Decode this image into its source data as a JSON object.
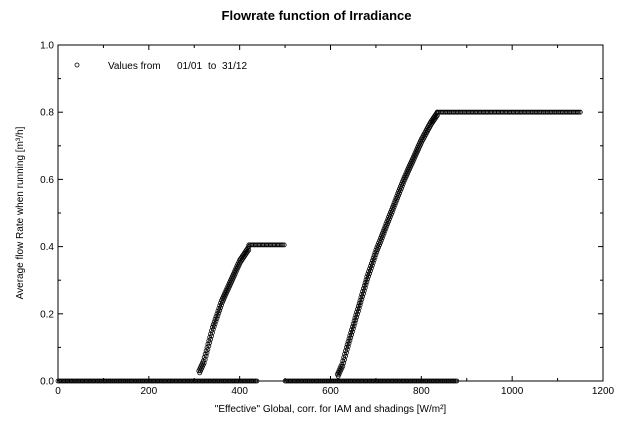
{
  "chart_data": {
    "type": "scatter",
    "title": "Flowrate function of Irradiance",
    "xlabel": "\"Effective\" Global, corr. for IAM and shadings [W/m²]",
    "ylabel": "Average flow Rate when running [m³/h]",
    "xlim": [
      0,
      1200
    ],
    "ylim": [
      0,
      1.0
    ],
    "xticks": [
      "0",
      "200",
      "400",
      "600",
      "800",
      "1000",
      "1200"
    ],
    "yticks": [
      "0.0",
      "0.2",
      "0.4",
      "0.6",
      "0.8",
      "1.0"
    ],
    "grid": false,
    "legend": {
      "placement": "top-left",
      "label": "Values from",
      "from": "01/01",
      "to_word": "to",
      "to": "31/12"
    },
    "series": [
      {
        "marker": "circle-open",
        "segments": [
          {
            "kind": "flat",
            "x_from": 0,
            "x_to": 440,
            "y": 0.0
          },
          {
            "kind": "flat",
            "x_from": 500,
            "x_to": 880,
            "y": 0.0
          },
          {
            "kind": "curve",
            "points": [
              [
                310,
                0.03
              ],
              [
                320,
                0.06
              ],
              [
                330,
                0.11
              ],
              [
                340,
                0.16
              ],
              [
                350,
                0.2
              ],
              [
                360,
                0.24
              ],
              [
                370,
                0.27
              ],
              [
                380,
                0.3
              ],
              [
                390,
                0.33
              ],
              [
                400,
                0.36
              ],
              [
                410,
                0.38
              ],
              [
                420,
                0.4
              ]
            ]
          },
          {
            "kind": "flat",
            "x_from": 420,
            "x_to": 500,
            "y": 0.405
          },
          {
            "kind": "curve",
            "points": [
              [
                615,
                0.02
              ],
              [
                625,
                0.05
              ],
              [
                635,
                0.1
              ],
              [
                650,
                0.17
              ],
              [
                665,
                0.24
              ],
              [
                680,
                0.31
              ],
              [
                700,
                0.39
              ],
              [
                720,
                0.46
              ],
              [
                740,
                0.53
              ],
              [
                760,
                0.6
              ],
              [
                780,
                0.66
              ],
              [
                800,
                0.72
              ],
              [
                820,
                0.77
              ],
              [
                835,
                0.8
              ]
            ]
          },
          {
            "kind": "flat",
            "x_from": 835,
            "x_to": 1150,
            "y": 0.8
          }
        ]
      }
    ]
  }
}
